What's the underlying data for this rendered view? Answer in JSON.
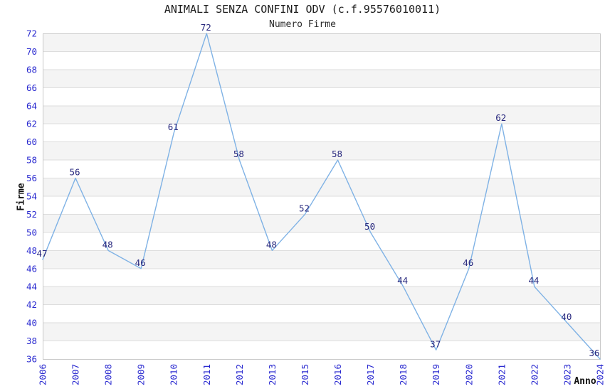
{
  "header": {
    "title": "ANIMALI SENZA CONFINI ODV (c.f.95576010011)",
    "subtitle": "Numero Firme"
  },
  "chart_data": {
    "type": "line",
    "title": "ANIMALI SENZA CONFINI ODV (c.f.95576010011)",
    "subtitle": "Numero Firme",
    "xlabel": "Anno",
    "ylabel": "Firme",
    "categories": [
      "2006",
      "2007",
      "2008",
      "2009",
      "2010",
      "2011",
      "2012",
      "2013",
      "2015",
      "2016",
      "2017",
      "2018",
      "2019",
      "2020",
      "2021",
      "2022",
      "2023",
      "2024"
    ],
    "series": [
      {
        "name": "Numero Firme",
        "values": [
          47,
          56,
          48,
          46,
          61,
          72,
          58,
          48,
          52,
          58,
          50,
          44,
          37,
          46,
          62,
          44,
          40,
          36
        ]
      }
    ],
    "point_labels_shown": true,
    "ylim": [
      36,
      72
    ],
    "ytick_step": 2,
    "grid": true,
    "legend": false,
    "colors": {
      "line": "#7FB2E5",
      "tick_label": "#2B2BD0",
      "point_label": "#28287E",
      "band_light": "#FFFFFF",
      "band_dark": "#F4F4F4",
      "grid_line": "#DDDDDD",
      "plot_border": "#C9C9C9",
      "title_text": "#1C1C1C",
      "axis_title_text": "#111111"
    }
  }
}
